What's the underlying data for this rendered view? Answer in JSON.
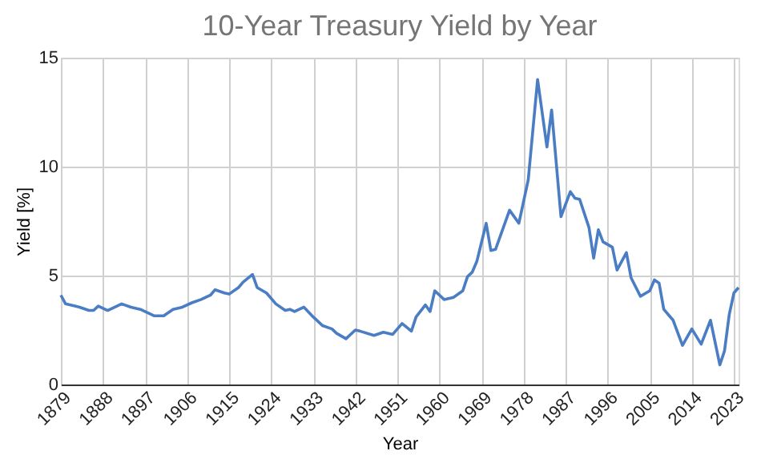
{
  "chart_data": {
    "type": "line",
    "title": "10-Year Treasury Yield by Year",
    "xlabel": "Year",
    "ylabel": "Yield [%]",
    "x": [
      1879,
      1880,
      1882,
      1883,
      1885,
      1886,
      1887,
      1889,
      1891,
      1892,
      1894,
      1896,
      1899,
      1901,
      1903,
      1905,
      1907,
      1909,
      1911,
      1912,
      1914,
      1915,
      1917,
      1918,
      1920,
      1921,
      1923,
      1925,
      1927,
      1928,
      1929,
      1931,
      1933,
      1935,
      1937,
      1938,
      1940,
      1942,
      1943,
      1946,
      1948,
      1950,
      1952,
      1954,
      1955,
      1957,
      1958,
      1959,
      1961,
      1963,
      1965,
      1966,
      1967,
      1968,
      1970,
      1971,
      1972,
      1975,
      1977,
      1979,
      1981,
      1983,
      1984,
      1986,
      1988,
      1989,
      1990,
      1992,
      1993,
      1994,
      1995,
      1997,
      1998,
      2000,
      2001,
      2003,
      2005,
      2006,
      2007,
      2008,
      2009,
      2010,
      2012,
      2014,
      2016,
      2018,
      2020,
      2021,
      2022,
      2023,
      2024
    ],
    "series": [
      {
        "color": "#4a7dc4",
        "values": [
          4.1,
          3.7,
          3.6,
          3.55,
          3.4,
          3.4,
          3.6,
          3.4,
          3.6,
          3.7,
          3.55,
          3.45,
          3.15,
          3.15,
          3.45,
          3.55,
          3.75,
          3.9,
          4.1,
          4.35,
          4.2,
          4.15,
          4.45,
          4.7,
          5.05,
          4.45,
          4.2,
          3.7,
          3.4,
          3.45,
          3.35,
          3.55,
          3.1,
          2.7,
          2.55,
          2.35,
          2.1,
          2.5,
          2.45,
          2.25,
          2.4,
          2.3,
          2.8,
          2.45,
          3.1,
          3.65,
          3.35,
          4.3,
          3.9,
          4.0,
          4.3,
          4.95,
          5.15,
          5.65,
          7.4,
          6.15,
          6.2,
          8.0,
          7.4,
          9.4,
          14.0,
          10.9,
          12.6,
          7.7,
          8.85,
          8.55,
          8.5,
          7.2,
          5.8,
          7.1,
          6.55,
          6.3,
          5.25,
          6.05,
          4.9,
          4.05,
          4.3,
          4.8,
          4.65,
          3.45,
          3.2,
          2.95,
          1.8,
          2.55,
          1.85,
          2.95,
          0.9,
          1.55,
          3.2,
          4.2,
          4.45
        ]
      }
    ],
    "xlim": [
      1879,
      2024
    ],
    "xticks": [
      1879,
      1888,
      1897,
      1906,
      1915,
      1924,
      1933,
      1942,
      1951,
      1960,
      1969,
      1978,
      1987,
      1996,
      2005,
      2014,
      2023
    ],
    "ylim": [
      0,
      15
    ],
    "yticks": [
      0,
      5,
      10,
      15
    ],
    "grid": true,
    "marker": "none",
    "line_style": "solid"
  }
}
